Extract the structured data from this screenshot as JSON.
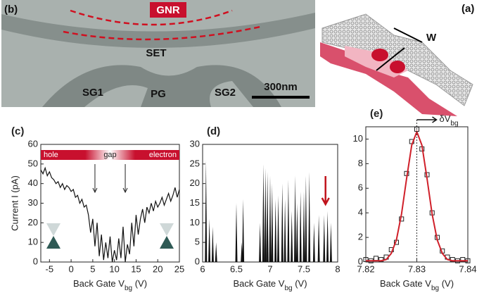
{
  "panels": {
    "b": {
      "label": "(b)",
      "gnr": "GNR",
      "set": "SET",
      "sg1": "SG1",
      "pg": "PG",
      "sg2": "SG2",
      "scale": "300nm"
    },
    "a": {
      "label": "(a)",
      "w": "W"
    }
  },
  "chart_data": [
    {
      "type": "line",
      "label": "(c)",
      "ylabel": "Current I (pA)",
      "xlabel": [
        "Back Gate V",
        "bg",
        " (V)"
      ],
      "xlim": [
        -7,
        25
      ],
      "xticks": [
        -5,
        0,
        5,
        10,
        15,
        20,
        25
      ],
      "ylim": [
        0,
        60
      ],
      "yticks": [
        0,
        10,
        20,
        30,
        40,
        50,
        60
      ],
      "band_labels": [
        "hole",
        "gap",
        "electron"
      ],
      "arrow_x": [
        5.5,
        12.5
      ],
      "x": [
        -7,
        -6.5,
        -6,
        -5.5,
        -5,
        -4.5,
        -4,
        -3.5,
        -3,
        -2.5,
        -2,
        -1.5,
        -1,
        -0.5,
        0,
        0.5,
        1,
        1.5,
        2,
        2.5,
        3,
        3.5,
        4,
        4.5,
        5,
        5.5,
        6,
        6.5,
        7,
        7.5,
        8,
        8.5,
        9,
        9.5,
        10,
        10.5,
        11,
        11.5,
        12,
        12.5,
        13,
        13.5,
        14,
        14.5,
        15,
        15.5,
        16,
        16.5,
        17,
        17.5,
        18,
        18.5,
        19,
        19.5,
        20,
        20.5,
        21,
        21.5,
        22,
        22.5,
        23,
        23.5,
        24,
        24.5,
        25
      ],
      "series": [
        {
          "color": "#111111",
          "values": [
            47,
            45,
            48,
            44,
            46,
            43,
            42,
            40,
            41,
            38,
            40,
            37,
            39,
            38,
            36,
            37,
            33,
            34,
            30,
            32,
            28,
            29,
            24,
            15,
            22,
            8,
            20,
            3,
            14,
            1,
            10,
            2,
            13,
            0,
            6,
            1,
            12,
            2,
            18,
            0,
            9,
            4,
            20,
            8,
            24,
            14,
            22,
            27,
            20,
            28,
            25,
            30,
            26,
            31,
            28,
            30,
            33,
            29,
            32,
            35,
            31,
            34,
            38,
            33,
            37
          ]
        }
      ]
    },
    {
      "type": "stem",
      "label": "(d)",
      "xlabel": [
        "Back Gate V",
        "bg",
        " (V)"
      ],
      "xlim": [
        6,
        8
      ],
      "xticks": [
        6,
        6.5,
        7,
        7.5,
        8
      ],
      "ylim": [
        0,
        30
      ],
      "yticks": [
        0,
        5,
        10,
        15,
        20,
        25,
        30
      ],
      "arrow_x": 7.82,
      "arrow_color": "#c0141c",
      "x": [
        6.05,
        6.1,
        6.15,
        6.2,
        6.5,
        6.58,
        6.6,
        6.85,
        6.9,
        6.93,
        6.96,
        7.0,
        7.03,
        7.08,
        7.12,
        7.18,
        7.22,
        7.27,
        7.32,
        7.37,
        7.4,
        7.45,
        7.5,
        7.53,
        7.58,
        7.65,
        7.72,
        7.8,
        7.85,
        7.9
      ],
      "series": [
        {
          "color": "#111111",
          "values": [
            26,
            11,
            9,
            5,
            15,
            5,
            16,
            10,
            25,
            24,
            23,
            22,
            20,
            16,
            17,
            20,
            16,
            21,
            13,
            22,
            15,
            18,
            18,
            22,
            23,
            10,
            12,
            12,
            13,
            10
          ]
        }
      ]
    },
    {
      "type": "scatter",
      "label": "(e)",
      "xlabel": [
        "Back Gate V",
        "bg",
        " (V)"
      ],
      "annotation": [
        "δV",
        "bg"
      ],
      "xlim": [
        7.82,
        7.84
      ],
      "xticks": [
        7.82,
        7.83,
        7.84
      ],
      "ylim": [
        0,
        11
      ],
      "yticks": [
        0,
        2,
        4,
        6,
        8,
        10
      ],
      "vline_x": 7.83,
      "x": [
        7.82,
        7.821,
        7.822,
        7.823,
        7.824,
        7.825,
        7.826,
        7.827,
        7.828,
        7.829,
        7.83,
        7.831,
        7.832,
        7.833,
        7.834,
        7.835,
        7.836,
        7.837,
        7.838,
        7.839,
        7.84
      ],
      "series": [
        {
          "style": "markers",
          "color": "#222222",
          "values": [
            0.2,
            0.1,
            0.3,
            0.2,
            0.4,
            1.0,
            1.6,
            3.5,
            7.2,
            9.8,
            10.8,
            9.2,
            7.1,
            4.0,
            2.0,
            0.9,
            0.4,
            0.2,
            0.1,
            0.2,
            0.1
          ]
        },
        {
          "style": "line",
          "color": "#d0202a",
          "values": [
            0.1,
            0.1,
            0.1,
            0.1,
            0.2,
            0.7,
            1.8,
            3.9,
            6.8,
            9.5,
            10.6,
            9.5,
            6.8,
            3.9,
            1.8,
            0.7,
            0.2,
            0.1,
            0.1,
            0.1,
            0.1
          ]
        }
      ]
    }
  ]
}
